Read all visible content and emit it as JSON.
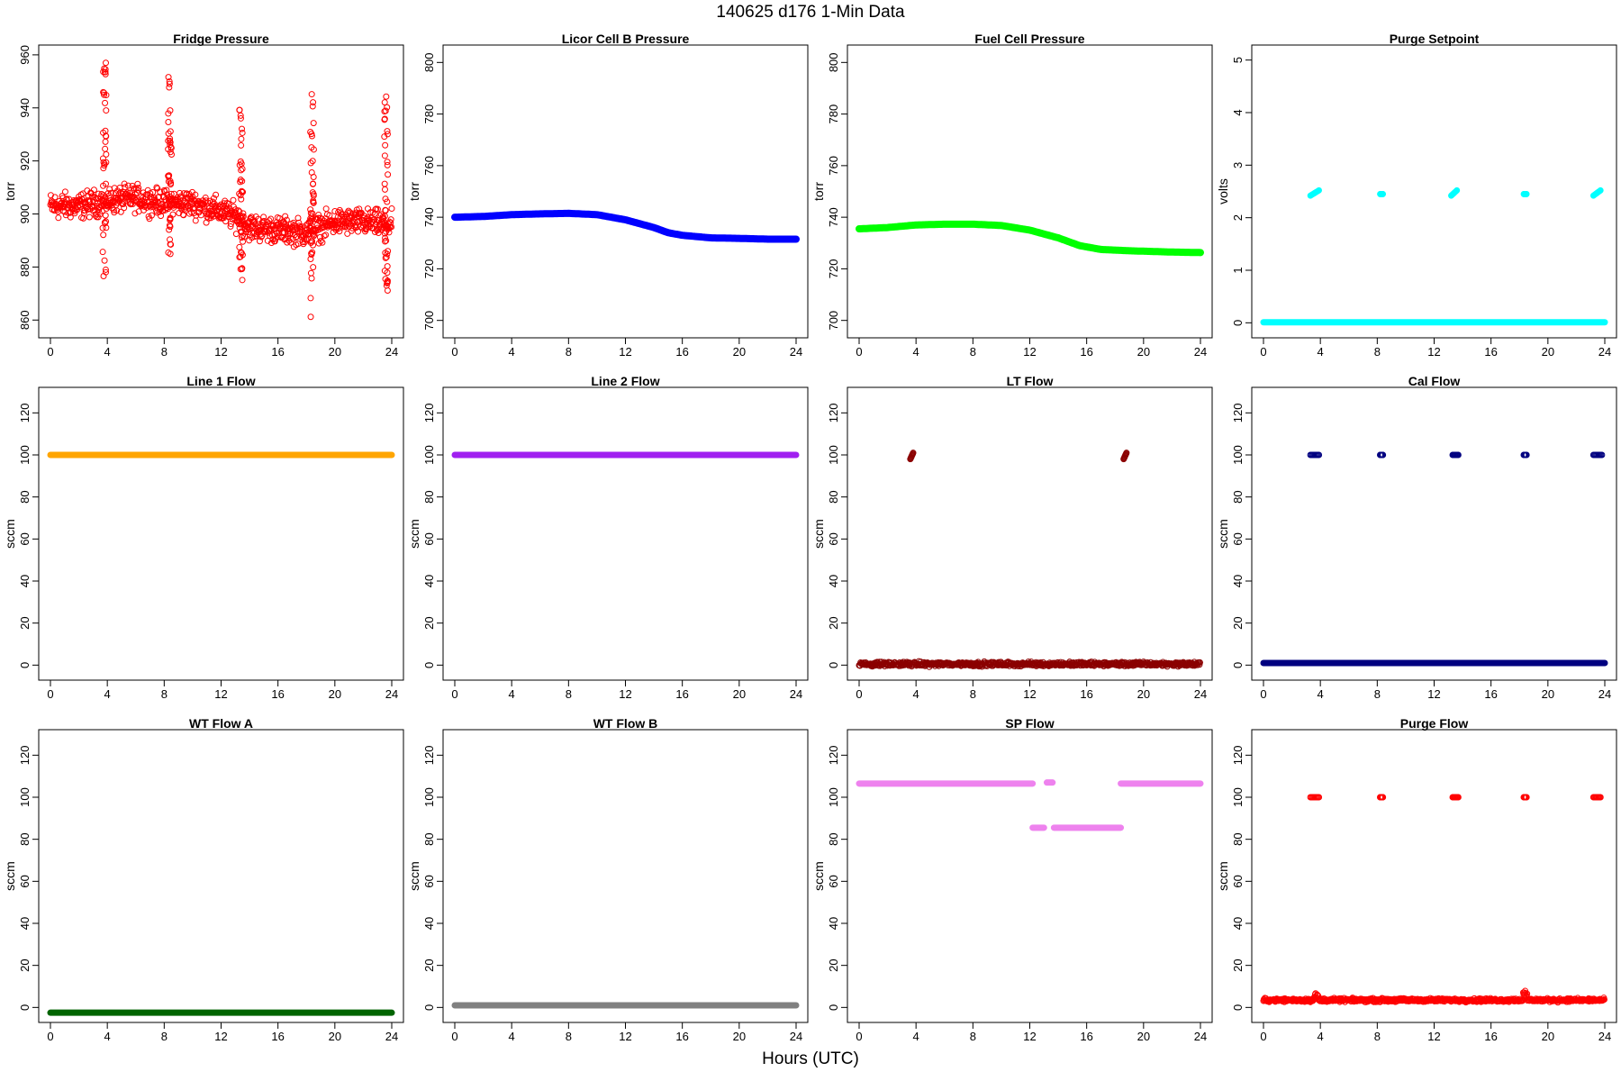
{
  "page": {
    "title": "140625   d176   1-Min Data",
    "x_label": "Hours (UTC)"
  },
  "colors": {
    "red": "#ff0000",
    "blue": "#0000ff",
    "green": "#00ff00",
    "cyan": "#00ffff",
    "orange": "#ffa500",
    "purple": "#a020f0",
    "darkred": "#8b0000",
    "navy": "#000080",
    "darkgreen": "#006400",
    "gray": "#808080",
    "violet": "#ee82ee"
  },
  "chart_data": [
    {
      "type": "scatter",
      "title": "Fridge Pressure",
      "xlabel": "",
      "ylabel": "torr",
      "color": "#ff0000",
      "marker": "open-circle",
      "xlim": [
        0,
        24
      ],
      "ylim": [
        855,
        962
      ],
      "xticks": [
        0,
        4,
        8,
        12,
        16,
        20,
        24
      ],
      "yticks": [
        860,
        880,
        900,
        920,
        940,
        960
      ],
      "series": [
        {
          "baseline": [
            [
              0,
              903
            ],
            [
              2,
              903
            ],
            [
              4,
              905
            ],
            [
              6,
              906
            ],
            [
              8,
              904
            ],
            [
              10,
              904
            ],
            [
              12,
              901
            ],
            [
              13,
              899
            ],
            [
              14,
              895
            ],
            [
              16,
              894
            ],
            [
              18,
              893
            ],
            [
              19,
              895
            ],
            [
              20,
              897
            ],
            [
              22,
              897
            ],
            [
              24,
              896
            ]
          ],
          "noise": 6,
          "excursions": [
            {
              "x": 3.8,
              "ymin": 876,
              "ymax": 957
            },
            {
              "x": 8.4,
              "ymin": 884,
              "ymax": 953
            },
            {
              "x": 13.4,
              "ymin": 873,
              "ymax": 941
            },
            {
              "x": 18.4,
              "ymin": 859,
              "ymax": 947
            },
            {
              "x": 23.6,
              "ymin": 871,
              "ymax": 946
            }
          ]
        }
      ]
    },
    {
      "type": "line",
      "title": "Licor Cell B Pressure",
      "xlabel": "",
      "ylabel": "torr",
      "color": "#0000ff",
      "marker": "filled",
      "xlim": [
        0,
        24
      ],
      "ylim": [
        695,
        805
      ],
      "xticks": [
        0,
        4,
        8,
        12,
        16,
        20,
        24
      ],
      "yticks": [
        700,
        720,
        740,
        760,
        780,
        800
      ],
      "series": [
        {
          "points": [
            [
              0,
              740
            ],
            [
              2,
              740.3
            ],
            [
              4,
              741
            ],
            [
              6,
              741.3
            ],
            [
              8,
              741.5
            ],
            [
              10,
              741
            ],
            [
              12,
              739
            ],
            [
              14,
              736
            ],
            [
              15,
              734
            ],
            [
              16,
              733
            ],
            [
              18,
              732
            ],
            [
              20,
              731.8
            ],
            [
              22,
              731.5
            ],
            [
              24,
              731.5
            ]
          ]
        }
      ]
    },
    {
      "type": "line",
      "title": "Fuel Cell Pressure",
      "xlabel": "",
      "ylabel": "torr",
      "color": "#00ff00",
      "marker": "filled",
      "xlim": [
        0,
        24
      ],
      "ylim": [
        695,
        805
      ],
      "xticks": [
        0,
        4,
        8,
        12,
        16,
        20,
        24
      ],
      "yticks": [
        700,
        720,
        740,
        760,
        780,
        800
      ],
      "series": [
        {
          "points": [
            [
              0,
              735.5
            ],
            [
              2,
              736
            ],
            [
              4,
              737
            ],
            [
              6,
              737.3
            ],
            [
              8,
              737.3
            ],
            [
              10,
              736.8
            ],
            [
              12,
              735
            ],
            [
              14,
              732
            ],
            [
              15.5,
              729
            ],
            [
              17,
              727.5
            ],
            [
              19,
              727
            ],
            [
              22,
              726.5
            ],
            [
              24,
              726.3
            ]
          ]
        }
      ]
    },
    {
      "type": "scatter",
      "title": "Purge Setpoint",
      "xlabel": "",
      "ylabel": "volts",
      "color": "#00ffff",
      "marker": "filled",
      "xlim": [
        0,
        24
      ],
      "ylim": [
        -0.2,
        5.2
      ],
      "xticks": [
        0,
        4,
        8,
        12,
        16,
        20,
        24
      ],
      "yticks": [
        0,
        1,
        2,
        3,
        4,
        5
      ],
      "series": [
        {
          "baseline_value": 0.01,
          "clusters": [
            {
              "x0": 3.3,
              "x1": 3.9,
              "y0": 2.42,
              "y1": 2.52
            },
            {
              "x0": 8.2,
              "x1": 8.4,
              "y0": 2.45,
              "y1": 2.45
            },
            {
              "x0": 13.2,
              "x1": 13.6,
              "y0": 2.42,
              "y1": 2.52
            },
            {
              "x0": 18.3,
              "x1": 18.5,
              "y0": 2.45,
              "y1": 2.45
            },
            {
              "x0": 23.2,
              "x1": 23.7,
              "y0": 2.42,
              "y1": 2.52
            }
          ]
        }
      ]
    },
    {
      "type": "line",
      "title": "Line 1 Flow",
      "xlabel": "",
      "ylabel": "sccm",
      "color": "#ffa500",
      "marker": "filled",
      "xlim": [
        0,
        24
      ],
      "ylim": [
        -5,
        130
      ],
      "xticks": [
        0,
        4,
        8,
        12,
        16,
        20,
        24
      ],
      "yticks": [
        0,
        20,
        40,
        60,
        80,
        100,
        120
      ],
      "series": [
        {
          "points": [
            [
              0,
              100
            ],
            [
              24,
              100
            ]
          ]
        }
      ]
    },
    {
      "type": "line",
      "title": "Line 2 Flow",
      "xlabel": "",
      "ylabel": "sccm",
      "color": "#a020f0",
      "marker": "filled",
      "xlim": [
        0,
        24
      ],
      "ylim": [
        -5,
        130
      ],
      "xticks": [
        0,
        4,
        8,
        12,
        16,
        20,
        24
      ],
      "yticks": [
        0,
        20,
        40,
        60,
        80,
        100,
        120
      ],
      "series": [
        {
          "points": [
            [
              0,
              100
            ],
            [
              24,
              100
            ]
          ]
        }
      ]
    },
    {
      "type": "scatter",
      "title": "LT Flow",
      "xlabel": "",
      "ylabel": "sccm",
      "color": "#8b0000",
      "marker": "open-circle",
      "xlim": [
        0,
        24
      ],
      "ylim": [
        -5,
        130
      ],
      "xticks": [
        0,
        4,
        8,
        12,
        16,
        20,
        24
      ],
      "yticks": [
        0,
        20,
        40,
        60,
        80,
        100,
        120
      ],
      "series": [
        {
          "baseline_value": 0.5,
          "noise": 1.5,
          "clusters": [
            {
              "x0": 3.6,
              "x1": 3.8,
              "y0": 98,
              "y1": 101
            },
            {
              "x0": 18.6,
              "x1": 18.8,
              "y0": 98,
              "y1": 101
            }
          ]
        }
      ]
    },
    {
      "type": "scatter",
      "title": "Cal Flow",
      "xlabel": "",
      "ylabel": "sccm",
      "color": "#000080",
      "marker": "open-circle",
      "xlim": [
        0,
        24
      ],
      "ylim": [
        -5,
        130
      ],
      "xticks": [
        0,
        4,
        8,
        12,
        16,
        20,
        24
      ],
      "yticks": [
        0,
        20,
        40,
        60,
        80,
        100,
        120
      ],
      "series": [
        {
          "baseline_value": 1,
          "clusters": [
            {
              "x0": 3.3,
              "x1": 3.9,
              "y0": 100,
              "y1": 100
            },
            {
              "x0": 8.2,
              "x1": 8.4,
              "y0": 100,
              "y1": 100
            },
            {
              "x0": 13.3,
              "x1": 13.7,
              "y0": 100,
              "y1": 100
            },
            {
              "x0": 18.3,
              "x1": 18.5,
              "y0": 100,
              "y1": 100
            },
            {
              "x0": 23.2,
              "x1": 23.8,
              "y0": 100,
              "y1": 100
            }
          ]
        }
      ]
    },
    {
      "type": "scatter",
      "title": "WT Flow A",
      "xlabel": "",
      "ylabel": "sccm",
      "color": "#006400",
      "marker": "filled",
      "xlim": [
        0,
        24
      ],
      "ylim": [
        -5,
        130
      ],
      "xticks": [
        0,
        4,
        8,
        12,
        16,
        20,
        24
      ],
      "yticks": [
        0,
        20,
        40,
        60,
        80,
        100,
        120
      ],
      "series": [
        {
          "points": [
            [
              0,
              -2.5
            ],
            [
              24,
              -2.5
            ]
          ]
        }
      ]
    },
    {
      "type": "scatter",
      "title": "WT Flow B",
      "xlabel": "",
      "ylabel": "sccm",
      "color": "#808080",
      "marker": "filled",
      "xlim": [
        0,
        24
      ],
      "ylim": [
        -5,
        130
      ],
      "xticks": [
        0,
        4,
        8,
        12,
        16,
        20,
        24
      ],
      "yticks": [
        0,
        20,
        40,
        60,
        80,
        100,
        120
      ],
      "series": [
        {
          "points": [
            [
              0,
              1
            ],
            [
              24,
              1
            ]
          ]
        }
      ]
    },
    {
      "type": "scatter",
      "title": "SP Flow",
      "xlabel": "",
      "ylabel": "sccm",
      "color": "#ee82ee",
      "marker": "filled",
      "xlim": [
        0,
        24
      ],
      "ylim": [
        -5,
        130
      ],
      "xticks": [
        0,
        4,
        8,
        12,
        16,
        20,
        24
      ],
      "yticks": [
        0,
        20,
        40,
        60,
        80,
        100,
        120
      ],
      "series": [
        {
          "segments": [
            {
              "x0": 0,
              "x1": 12.2,
              "y": 106.5
            },
            {
              "x0": 13.2,
              "x1": 13.6,
              "y": 107
            },
            {
              "x0": 12.2,
              "x1": 13.0,
              "y": 85.5
            },
            {
              "x0": 13.7,
              "x1": 18.4,
              "y": 85.5
            },
            {
              "x0": 18.4,
              "x1": 24,
              "y": 106.5
            }
          ]
        }
      ]
    },
    {
      "type": "scatter",
      "title": "Purge Flow",
      "xlabel": "",
      "ylabel": "sccm",
      "color": "#ff0000",
      "marker": "open-circle",
      "xlim": [
        0,
        24
      ],
      "ylim": [
        -5,
        130
      ],
      "xticks": [
        0,
        4,
        8,
        12,
        16,
        20,
        24
      ],
      "yticks": [
        0,
        20,
        40,
        60,
        80,
        100,
        120
      ],
      "series": [
        {
          "baseline_value": 3.5,
          "noise": 1.2,
          "bumps": [
            {
              "x": 3.7,
              "y": 7
            },
            {
              "x": 18.4,
              "y": 8
            }
          ],
          "clusters": [
            {
              "x0": 3.3,
              "x1": 3.9,
              "y0": 100,
              "y1": 100
            },
            {
              "x0": 8.2,
              "x1": 8.4,
              "y0": 100,
              "y1": 100
            },
            {
              "x0": 13.3,
              "x1": 13.7,
              "y0": 100,
              "y1": 100
            },
            {
              "x0": 18.3,
              "x1": 18.5,
              "y0": 100,
              "y1": 100
            },
            {
              "x0": 23.2,
              "x1": 23.7,
              "y0": 100,
              "y1": 100
            }
          ]
        }
      ]
    }
  ]
}
